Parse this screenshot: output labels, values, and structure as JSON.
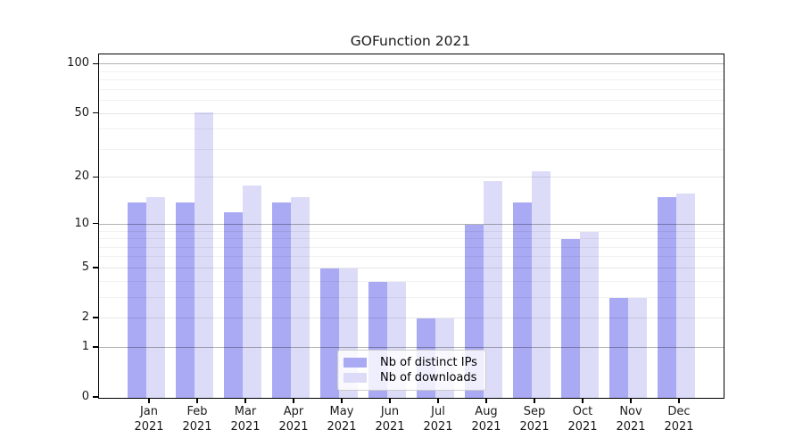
{
  "chart_data": {
    "type": "bar",
    "title": "GOFunction 2021",
    "categories": [
      "Jan",
      "Feb",
      "Mar",
      "Apr",
      "May",
      "Jun",
      "Jul",
      "Aug",
      "Sep",
      "Oct",
      "Nov",
      "Dec"
    ],
    "year": "2021",
    "series": [
      {
        "name": "Nb of distinct IPs",
        "color": "#a9a9f4",
        "values": [
          14,
          14,
          12,
          14,
          5,
          4,
          2,
          10,
          14,
          8,
          3,
          15
        ]
      },
      {
        "name": "Nb of downloads",
        "color": "#dcdcf8",
        "values": [
          15,
          51,
          18,
          15,
          5,
          4,
          2,
          19,
          22,
          9,
          3,
          16
        ]
      }
    ],
    "xlabel": "",
    "ylabel": "",
    "yscale": "log1p",
    "ylim": [
      0,
      115
    ],
    "yticks": [
      0,
      1,
      2,
      5,
      10,
      20,
      50,
      100
    ],
    "grid": {
      "major": [
        1,
        10,
        100
      ],
      "mid": [
        2,
        5,
        20,
        50
      ],
      "minor": [
        3,
        4,
        6,
        7,
        8,
        9,
        30,
        40,
        60,
        70,
        80,
        90
      ]
    },
    "legend_position": "lower center",
    "spine_color": "#000000",
    "grid_major_color": "#b8b8b8",
    "grid_minor_color": "#ebebeb"
  }
}
